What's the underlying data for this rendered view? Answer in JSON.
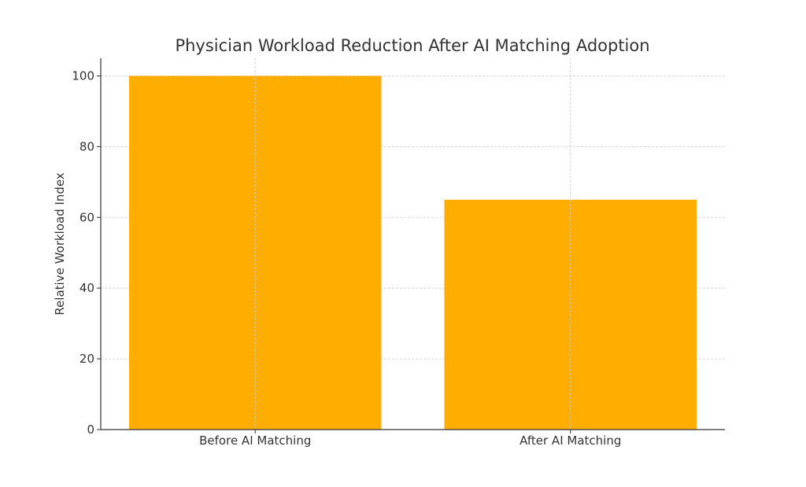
{
  "chart_data": {
    "type": "bar",
    "title": "Physician Workload Reduction After AI Matching Adoption",
    "xlabel": "",
    "ylabel": "Relative Workload Index",
    "categories": [
      "Before AI Matching",
      "After AI Matching"
    ],
    "values": [
      100,
      65
    ],
    "ylim": [
      0,
      105
    ],
    "yticks": [
      0,
      20,
      40,
      60,
      80,
      100
    ],
    "grid": true,
    "bar_color": "#FFAE00",
    "legend": "none"
  }
}
